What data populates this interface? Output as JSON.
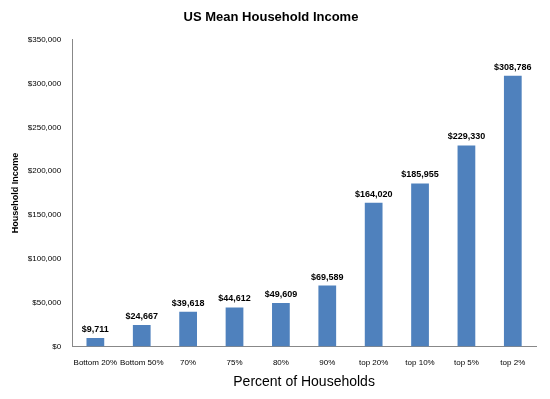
{
  "chart_data": {
    "type": "bar",
    "title": "US Mean Household Income",
    "x_label": "Percent of Households",
    "y_label": "Household Income",
    "categories": [
      "Bottom 20%",
      "Bottom 50%",
      "70%",
      "75%",
      "80%",
      "90%",
      "top 20%",
      "top 10%",
      "top 5%",
      "top 2%"
    ],
    "values": [
      9711,
      24667,
      39618,
      44612,
      49609,
      69589,
      164020,
      185955,
      229330,
      308786
    ],
    "value_labels": [
      "$9,711",
      "$24,667",
      "$39,618",
      "$44,612",
      "$49,609",
      "$69,589",
      "$164,020",
      "$185,955",
      "$229,330",
      "$308,786"
    ],
    "data_labels": true,
    "color": "#4f81bd",
    "ylim": [
      0,
      350000
    ],
    "yticks": [
      {
        "value": 0,
        "label": "$0"
      },
      {
        "value": 50000,
        "label": "$50,000"
      },
      {
        "value": 100000,
        "label": "$100,000"
      },
      {
        "value": 150000,
        "label": "$150,000"
      },
      {
        "value": 200000,
        "label": "$200,000"
      },
      {
        "value": 250000,
        "label": "$250,000"
      },
      {
        "value": 300000,
        "label": "$300,000"
      },
      {
        "value": 350000,
        "label": "$350,000"
      }
    ],
    "grid": false
  }
}
